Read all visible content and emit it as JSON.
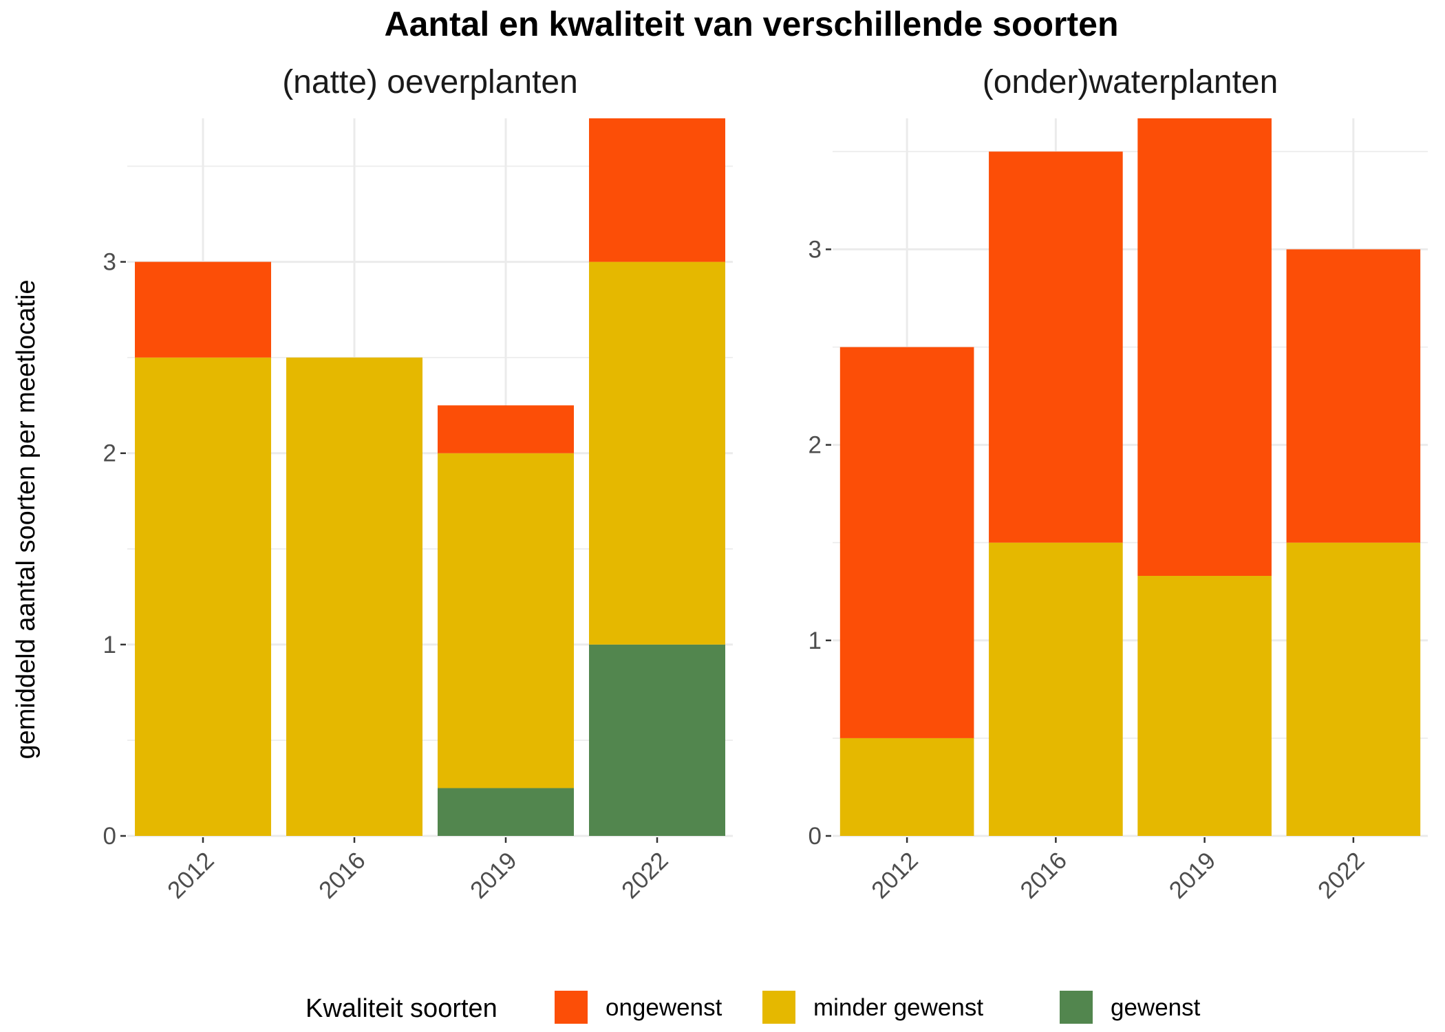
{
  "chart_data": {
    "type": "bar",
    "stacked": true,
    "title": "Aantal en kwaliteit van verschillende soorten",
    "ylabel": "gemiddeld aantal soorten per meetlocatie",
    "xlabel": "",
    "legend": {
      "title": "Kwaliteit soorten",
      "placement": "bottom",
      "entries": [
        {
          "name": "ongewenst",
          "color": "#FC4E07"
        },
        {
          "name": "minder gewenst",
          "color": "#E5B800"
        },
        {
          "name": "gewenst",
          "color": "#52864E"
        }
      ]
    },
    "grid": true,
    "panels": [
      {
        "title": "(natte) oeverplanten",
        "categories": [
          "2012",
          "2016",
          "2019",
          "2022"
        ],
        "ylim": [
          0,
          3.75
        ],
        "yticks": [
          "0",
          "1",
          "2",
          "3"
        ],
        "series": [
          {
            "name": "gewenst",
            "values": [
              0,
              0,
              0.25,
              1
            ]
          },
          {
            "name": "minder gewenst",
            "values": [
              2.5,
              2.5,
              1.75,
              2
            ]
          },
          {
            "name": "ongewenst",
            "values": [
              0.5,
              0,
              0.25,
              0.75
            ]
          }
        ]
      },
      {
        "title": "(onder)waterplanten",
        "categories": [
          "2012",
          "2016",
          "2019",
          "2022"
        ],
        "ylim": [
          0,
          3.67
        ],
        "yticks": [
          "0",
          "1",
          "2",
          "3"
        ],
        "series": [
          {
            "name": "gewenst",
            "values": [
              0,
              0,
              0,
              0
            ]
          },
          {
            "name": "minder gewenst",
            "values": [
              0.5,
              1.5,
              1.33,
              1.5
            ]
          },
          {
            "name": "ongewenst",
            "values": [
              2,
              2,
              2.34,
              1.5
            ]
          }
        ]
      }
    ]
  }
}
